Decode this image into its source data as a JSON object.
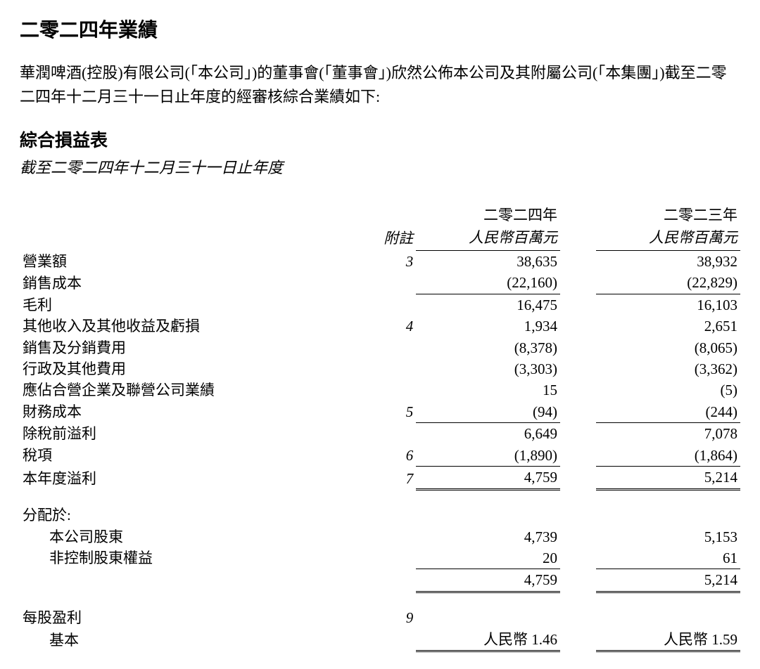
{
  "title": "二零二四年業績",
  "intro": "華潤啤酒(控股)有限公司(「本公司」)的董事會(「董事會」)欣然公佈本公司及其附屬公司(「本集團」)截至二零二四年十二月三十一日止年度的經審核綜合業績如下:",
  "sectionTitle": "綜合損益表",
  "sectionSubtitle": "截至二零二四年十二月三十一日止年度",
  "hdr": {
    "noteLabel": "附註",
    "year1": "二零二四年",
    "year2": "二零二三年",
    "unit1": "人民幣百萬元",
    "unit2": "人民幣百萬元"
  },
  "rows": {
    "revenue": {
      "label": "營業額",
      "note": "3",
      "y1": "38,635",
      "y2": "38,932"
    },
    "cos": {
      "label": "銷售成本",
      "note": "",
      "y1": "(22,160)",
      "y2": "(22,829)"
    },
    "gp": {
      "label": "毛利",
      "note": "",
      "y1": "16,475",
      "y2": "16,103"
    },
    "otherIncome": {
      "label": "其他收入及其他收益及虧損",
      "note": "4",
      "y1": "1,934",
      "y2": "2,651"
    },
    "selling": {
      "label": "銷售及分銷費用",
      "note": "",
      "y1": "(8,378)",
      "y2": "(8,065)"
    },
    "admin": {
      "label": "行政及其他費用",
      "note": "",
      "y1": "(3,303)",
      "y2": "(3,362)"
    },
    "shareJV": {
      "label": "應佔合營企業及聯營公司業績",
      "note": "",
      "y1": "15",
      "y2": "(5)"
    },
    "finance": {
      "label": "財務成本",
      "note": "5",
      "y1": "(94)",
      "y2": "(244)"
    },
    "pbt": {
      "label": "除稅前溢利",
      "note": "",
      "y1": "6,649",
      "y2": "7,078"
    },
    "tax": {
      "label": "稅項",
      "note": "6",
      "y1": "(1,890)",
      "y2": "(1,864)"
    },
    "profit": {
      "label": "本年度溢利",
      "note": "7",
      "y1": "4,759",
      "y2": "5,214"
    },
    "attribLabel": "分配於:",
    "owners": {
      "label": "本公司股東",
      "note": "",
      "y1": "4,739",
      "y2": "5,153"
    },
    "nci": {
      "label": "非控制股東權益",
      "note": "",
      "y1": "20",
      "y2": "61"
    },
    "attribTotal": {
      "y1": "4,759",
      "y2": "5,214"
    },
    "epsLabel": {
      "label": "每股盈利",
      "note": "9"
    },
    "basic": {
      "label": "基本",
      "y1": "人民幣 1.46",
      "y2": "人民幣 1.59"
    }
  },
  "style": {
    "background": "#ffffff",
    "textColor": "#000000",
    "borderColor": "#000000",
    "titleFontSize": 28,
    "bodyFontSize": 21,
    "sectionTitleFontSize": 25
  }
}
